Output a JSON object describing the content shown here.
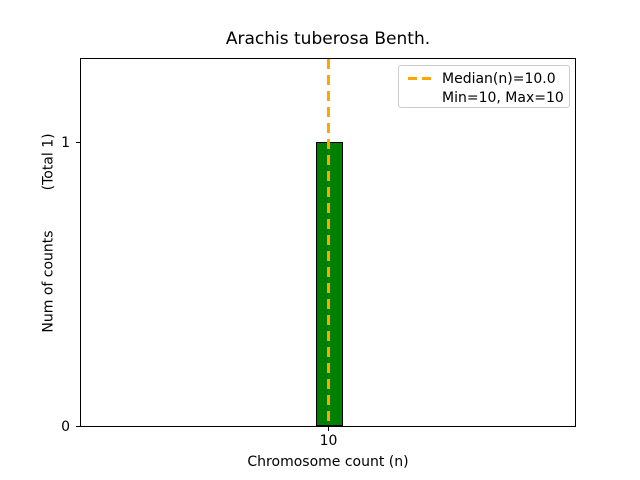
{
  "chart_data": {
    "type": "bar",
    "title": "Arachis tuberosa Benth.",
    "xlabel": "Chromosome count (n)",
    "ylabel": "Num of counts         (Total 1)",
    "total_counts": 1,
    "categories": [
      "10"
    ],
    "values": [
      1
    ],
    "median_n": 10.0,
    "min_n": 10,
    "max_n": 10,
    "xticks": [
      "10"
    ],
    "yticks": [
      "0",
      "1"
    ],
    "ylim": [
      0,
      1.3
    ],
    "grid": false,
    "legend": {
      "position": "upper right",
      "items": [
        "Median(n)=10.0",
        "Min=10, Max=10"
      ]
    },
    "colors": {
      "bar": "#008000",
      "bar_edge": "#000000",
      "median_line": "#ffa500",
      "legend_border": "#cccccc",
      "text": "#000000",
      "background": "#ffffff"
    }
  }
}
